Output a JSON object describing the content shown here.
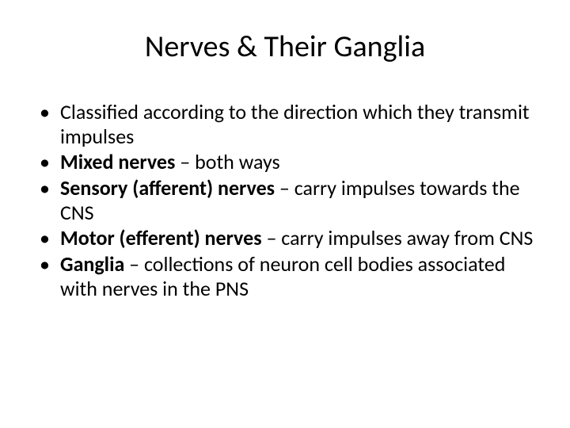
{
  "slide": {
    "title": "Nerves & Their Ganglia",
    "title_fontsize": 38,
    "title_align": "center",
    "title_color": "#000000",
    "background_color": "#ffffff",
    "bullets": [
      {
        "bold": "",
        "rest": "Classified according to the direction which they transmit impulses"
      },
      {
        "bold": "Mixed nerves",
        "rest": " – both ways"
      },
      {
        "bold": "Sensory (afferent) nerves",
        "rest": " – carry impulses towards the CNS"
      },
      {
        "bold": "Motor (efferent) nerves",
        "rest": " – carry impulses away from CNS"
      },
      {
        "bold": "Ganglia",
        "rest": " – collections of neuron cell bodies associated with nerves in the PNS"
      }
    ],
    "bullet_fontsize": 26,
    "bullet_color": "#000000",
    "font_family": "Calibri"
  }
}
